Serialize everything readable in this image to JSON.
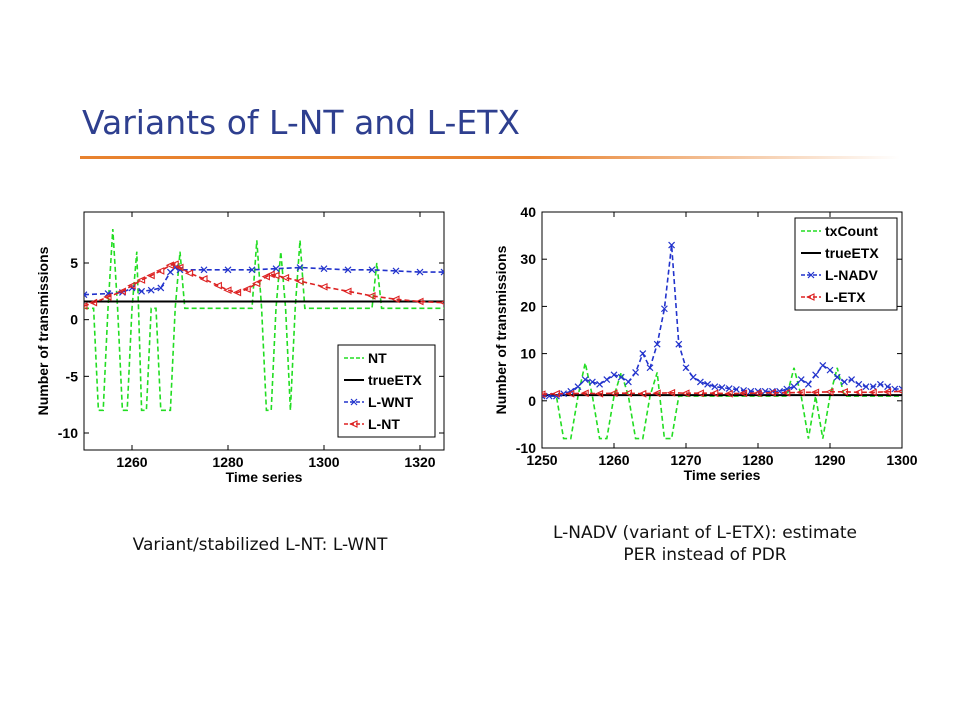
{
  "slide": {
    "title": "Variants of L-NT and L-ETX",
    "title_color": "#2e3f8f",
    "rule_color": "#e8822f",
    "captions": {
      "left": "Variant/stabilized L-NT: L-WNT",
      "right_line1": "L-NADV (variant of L-ETX): estimate",
      "right_line2": "PER instead of PDR"
    }
  },
  "chart_data": [
    {
      "type": "line",
      "xlabel": "Time series",
      "ylabel": "Number of transmissions",
      "xlim": [
        1250,
        1325
      ],
      "ylim": [
        -11.5,
        9.5
      ],
      "xticks": [
        1260,
        1280,
        1300,
        1320
      ],
      "yticks": [
        -10,
        -5,
        0,
        5
      ],
      "grid": false,
      "legend_position": "bottom-right",
      "series": [
        {
          "name": "NT",
          "color": "#22dd22",
          "style": "dashed",
          "marker": "none",
          "x": [
            1250,
            1252,
            1253,
            1254,
            1255,
            1256,
            1257,
            1258,
            1259,
            1260,
            1261,
            1262,
            1263,
            1264,
            1265,
            1266,
            1267,
            1268,
            1269,
            1270,
            1271,
            1272,
            1280,
            1285,
            1286,
            1287,
            1288,
            1289,
            1290,
            1291,
            1292,
            1293,
            1294,
            1295,
            1296,
            1297,
            1305,
            1310,
            1311,
            1312,
            1315,
            1325
          ],
          "y": [
            1,
            1,
            -8,
            -8,
            1,
            8,
            1,
            -8,
            -8,
            1,
            6,
            -8,
            -8,
            1,
            1,
            -8,
            -8,
            -8,
            1,
            6,
            1,
            1,
            1,
            1,
            7,
            1,
            -8,
            -8,
            1,
            6,
            1,
            -8,
            1,
            7,
            1,
            1,
            1,
            1,
            5,
            1,
            1,
            1
          ]
        },
        {
          "name": "trueETX",
          "color": "#000000",
          "style": "solid",
          "marker": "none",
          "x": [
            1250,
            1325
          ],
          "y": [
            1.6,
            1.6
          ]
        },
        {
          "name": "L-WNT",
          "color": "#2233cc",
          "style": "dashed",
          "marker": "x",
          "x": [
            1250,
            1255,
            1258,
            1260,
            1262,
            1264,
            1266,
            1268,
            1269,
            1270,
            1275,
            1280,
            1285,
            1290,
            1295,
            1300,
            1305,
            1310,
            1315,
            1320,
            1325
          ],
          "y": [
            2.2,
            2.3,
            2.4,
            2.8,
            2.5,
            2.6,
            2.8,
            4.2,
            4.6,
            4.4,
            4.4,
            4.4,
            4.4,
            4.5,
            4.6,
            4.5,
            4.4,
            4.4,
            4.3,
            4.2,
            4.2
          ]
        },
        {
          "name": "L-NT",
          "color": "#dd2222",
          "style": "dashed",
          "marker": "<",
          "x": [
            1250,
            1252,
            1255,
            1258,
            1260,
            1262,
            1264,
            1266,
            1268,
            1269,
            1270,
            1272,
            1275,
            1278,
            1280,
            1282,
            1284,
            1286,
            1288,
            1289,
            1290,
            1292,
            1295,
            1300,
            1305,
            1310,
            1315,
            1320,
            1325
          ],
          "y": [
            1.2,
            1.5,
            2.0,
            2.5,
            3.0,
            3.5,
            3.9,
            4.3,
            4.8,
            4.9,
            4.6,
            4.1,
            3.6,
            3.0,
            2.6,
            2.4,
            2.7,
            3.2,
            3.8,
            4.0,
            3.9,
            3.7,
            3.4,
            2.9,
            2.5,
            2.1,
            1.8,
            1.6,
            1.5
          ]
        }
      ]
    },
    {
      "type": "line",
      "xlabel": "Time series",
      "ylabel": "Number of transmissions",
      "xlim": [
        1250,
        1300
      ],
      "ylim": [
        -10,
        40
      ],
      "xticks": [
        1250,
        1260,
        1270,
        1280,
        1290,
        1300
      ],
      "yticks": [
        -10,
        0,
        10,
        20,
        30,
        40
      ],
      "grid": false,
      "legend_position": "top-right",
      "series": [
        {
          "name": "txCount",
          "color": "#22dd22",
          "style": "dashed",
          "marker": "none",
          "x": [
            1250,
            1251,
            1252,
            1253,
            1254,
            1255,
            1256,
            1257,
            1258,
            1259,
            1260,
            1261,
            1262,
            1263,
            1264,
            1265,
            1266,
            1267,
            1268,
            1269,
            1270,
            1271,
            1280,
            1284,
            1285,
            1286,
            1287,
            1288,
            1289,
            1290,
            1291,
            1292,
            1293,
            1300
          ],
          "y": [
            1,
            1,
            1,
            -8,
            -8,
            1,
            8,
            1,
            -8,
            -8,
            1,
            6,
            1,
            -8,
            -8,
            1,
            6,
            -8,
            -8,
            1,
            1,
            1,
            1,
            1,
            7,
            1,
            -8,
            1,
            -8,
            1,
            7,
            1,
            1,
            1
          ]
        },
        {
          "name": "trueETX",
          "color": "#000000",
          "style": "solid",
          "marker": "none",
          "x": [
            1250,
            1300
          ],
          "y": [
            1.2,
            1.2
          ]
        },
        {
          "name": "L-NADV",
          "color": "#2233cc",
          "style": "dashed",
          "marker": "x",
          "x": [
            1250,
            1251,
            1252,
            1253,
            1254,
            1255,
            1256,
            1257,
            1258,
            1259,
            1260,
            1261,
            1262,
            1263,
            1264,
            1265,
            1266,
            1267,
            1268,
            1269,
            1270,
            1271,
            1272,
            1273,
            1274,
            1275,
            1276,
            1277,
            1278,
            1279,
            1280,
            1281,
            1282,
            1283,
            1284,
            1285,
            1286,
            1287,
            1288,
            1289,
            1290,
            1291,
            1292,
            1293,
            1294,
            1295,
            1296,
            1297,
            1298,
            1299,
            1300
          ],
          "y": [
            1,
            1,
            1,
            1.5,
            2,
            3,
            4.5,
            4,
            3.5,
            4.5,
            5.5,
            5,
            4,
            6,
            10,
            7,
            12,
            19.5,
            33,
            12,
            7,
            5,
            4,
            3.5,
            3,
            2.8,
            2.6,
            2.4,
            2.2,
            2,
            2,
            2,
            2,
            2,
            2.5,
            3,
            4.5,
            3.5,
            5.5,
            7.5,
            6.5,
            5,
            4,
            4.5,
            3.5,
            3,
            3,
            3.5,
            3,
            2.5,
            2.5
          ]
        },
        {
          "name": "L-ETX",
          "color": "#dd2222",
          "style": "dashed",
          "marker": "<",
          "x": [
            1250,
            1252,
            1254,
            1256,
            1258,
            1260,
            1262,
            1264,
            1266,
            1268,
            1270,
            1272,
            1274,
            1276,
            1278,
            1280,
            1282,
            1284,
            1286,
            1288,
            1290,
            1292,
            1294,
            1296,
            1298,
            1300
          ],
          "y": [
            1.4,
            1.5,
            1.5,
            1.6,
            1.5,
            1.6,
            1.6,
            1.5,
            1.6,
            1.7,
            1.6,
            1.6,
            1.6,
            1.5,
            1.6,
            1.6,
            1.7,
            1.7,
            1.8,
            1.8,
            1.9,
            1.9,
            1.8,
            1.8,
            1.9,
            2.0
          ]
        }
      ]
    }
  ]
}
